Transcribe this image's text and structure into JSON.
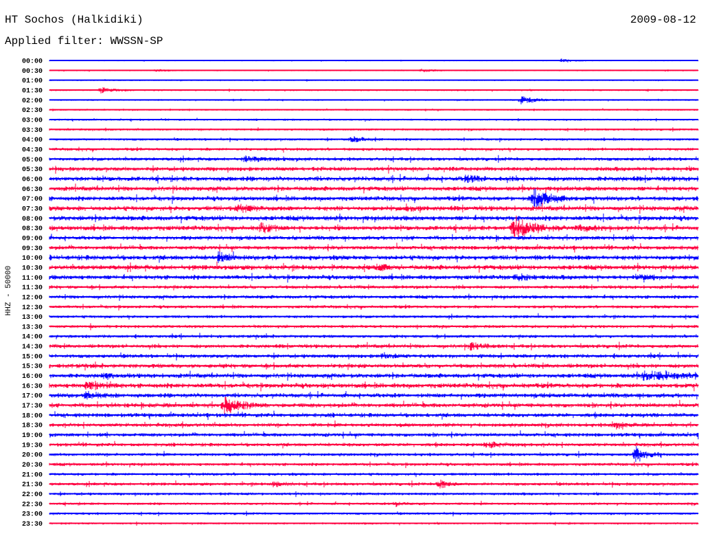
{
  "header": {
    "station": "HT Sochos (Halkidiki)",
    "date": "2009-08-12",
    "filter": "Applied filter: WWSSN-SP"
  },
  "chart_data": {
    "type": "line",
    "title": "HT Sochos (Halkidiki)",
    "ylabel": "HHZ - 50000",
    "minutes_per_line": 30,
    "colors": [
      "#0000ff",
      "#ff0040"
    ],
    "rows": [
      "00:00",
      "00:30",
      "01:00",
      "01:30",
      "02:00",
      "02:30",
      "03:00",
      "03:30",
      "04:00",
      "04:30",
      "05:00",
      "05:30",
      "06:00",
      "06:30",
      "07:00",
      "07:30",
      "08:00",
      "08:30",
      "09:00",
      "09:30",
      "10:00",
      "10:30",
      "11:00",
      "11:30",
      "12:00",
      "12:30",
      "13:00",
      "13:30",
      "14:00",
      "14:30",
      "15:00",
      "15:30",
      "16:00",
      "16:30",
      "17:00",
      "17:30",
      "18:00",
      "18:30",
      "19:00",
      "19:30",
      "20:00",
      "20:30",
      "21:00",
      "21:30",
      "22:00",
      "22:30",
      "23:00",
      "23:30"
    ],
    "noise_levels": [
      0.4,
      0.5,
      0.5,
      0.8,
      0.7,
      0.7,
      0.9,
      1.0,
      1.2,
      1.5,
      1.8,
      2.2,
      2.6,
      2.4,
      2.4,
      2.6,
      2.6,
      2.6,
      2.2,
      2.2,
      2.6,
      2.6,
      2.4,
      1.8,
      1.8,
      1.6,
      1.5,
      1.6,
      1.6,
      2.0,
      2.0,
      2.3,
      2.4,
      2.6,
      2.4,
      2.4,
      2.2,
      2.0,
      2.0,
      1.8,
      1.6,
      1.6,
      1.5,
      1.6,
      1.4,
      1.3,
      1.2,
      1.0
    ],
    "events": [
      {
        "row": 0,
        "minute": 23.7,
        "amp": 3,
        "dur": 0.8
      },
      {
        "row": 1,
        "minute": 4.9,
        "amp": 2,
        "dur": 0.8
      },
      {
        "row": 1,
        "minute": 17.2,
        "amp": 2.5,
        "dur": 0.8
      },
      {
        "row": 3,
        "minute": 2.4,
        "amp": 6,
        "dur": 0.7
      },
      {
        "row": 4,
        "minute": 21.8,
        "amp": 6,
        "dur": 1.0
      },
      {
        "row": 8,
        "minute": 14.0,
        "amp": 6,
        "dur": 0.7
      },
      {
        "row": 10,
        "minute": 9.0,
        "amp": 4,
        "dur": 1.2
      },
      {
        "row": 12,
        "minute": 19.3,
        "amp": 5,
        "dur": 0.8
      },
      {
        "row": 14,
        "minute": 22.4,
        "amp": 18,
        "dur": 1.0
      },
      {
        "row": 15,
        "minute": 8.7,
        "amp": 5,
        "dur": 1.0
      },
      {
        "row": 15,
        "minute": 16.5,
        "amp": 5,
        "dur": 0.6
      },
      {
        "row": 17,
        "minute": 9.8,
        "amp": 8,
        "dur": 0.6
      },
      {
        "row": 17,
        "minute": 21.4,
        "amp": 20,
        "dur": 1.2
      },
      {
        "row": 17,
        "minute": 24.4,
        "amp": 5,
        "dur": 1.0
      },
      {
        "row": 20,
        "minute": 7.8,
        "amp": 8,
        "dur": 0.6
      },
      {
        "row": 21,
        "minute": 15.3,
        "amp": 5,
        "dur": 0.6
      },
      {
        "row": 22,
        "minute": 21.6,
        "amp": 5,
        "dur": 0.6
      },
      {
        "row": 22,
        "minute": 27.4,
        "amp": 4,
        "dur": 0.8
      },
      {
        "row": 29,
        "minute": 19.5,
        "amp": 5,
        "dur": 0.8
      },
      {
        "row": 30,
        "minute": 15.4,
        "amp": 4,
        "dur": 0.8
      },
      {
        "row": 32,
        "minute": 2.5,
        "amp": 5,
        "dur": 0.5
      },
      {
        "row": 32,
        "minute": 27.5,
        "amp": 8,
        "dur": 2.0
      },
      {
        "row": 33,
        "minute": 1.7,
        "amp": 5,
        "dur": 1.0
      },
      {
        "row": 34,
        "minute": 1.7,
        "amp": 5,
        "dur": 0.8
      },
      {
        "row": 35,
        "minute": 8.1,
        "amp": 14,
        "dur": 1.0
      },
      {
        "row": 37,
        "minute": 26.1,
        "amp": 7,
        "dur": 0.6
      },
      {
        "row": 39,
        "minute": 20.2,
        "amp": 4,
        "dur": 1.0
      },
      {
        "row": 40,
        "minute": 27.1,
        "amp": 14,
        "dur": 0.7
      },
      {
        "row": 43,
        "minute": 10.4,
        "amp": 5,
        "dur": 0.5
      },
      {
        "row": 43,
        "minute": 18.0,
        "amp": 8,
        "dur": 0.5
      },
      {
        "row": 45,
        "minute": 16.0,
        "amp": 4,
        "dur": 0.6
      }
    ]
  }
}
